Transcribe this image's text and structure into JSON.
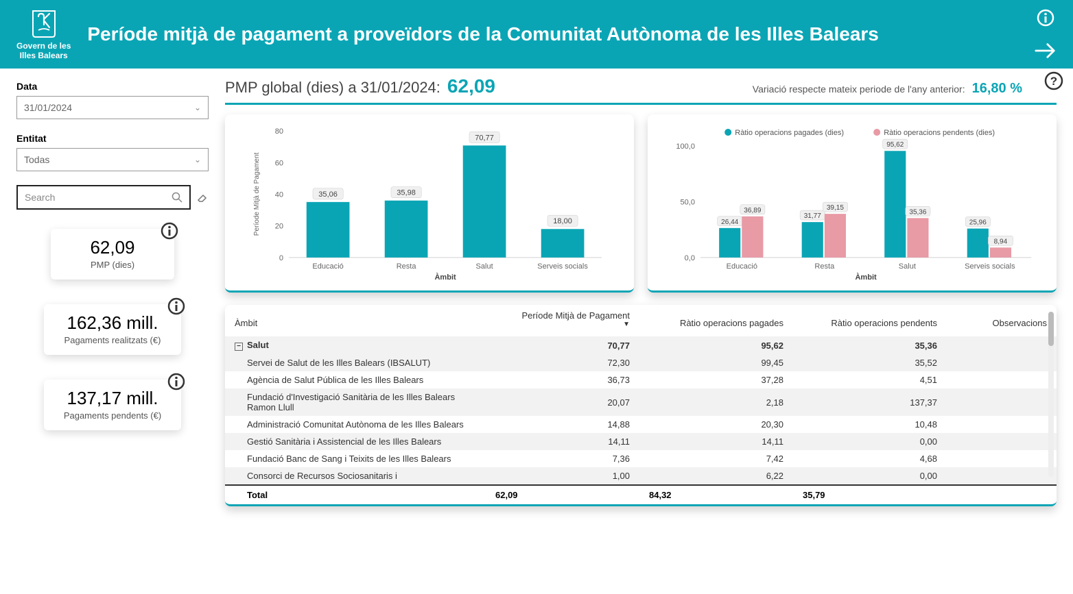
{
  "header": {
    "org_line1": "Govern de les",
    "org_line2": "Illes Balears",
    "title": "Període mitjà de pagament a proveïdors de la Comunitat Autònoma de les Illes Balears"
  },
  "sidebar": {
    "data_label": "Data",
    "data_value": "31/01/2024",
    "entitat_label": "Entitat",
    "entitat_value": "Todas",
    "search_placeholder": "Search",
    "kpis": [
      {
        "value": "62,09",
        "label": "PMP (dies)"
      },
      {
        "value": "162,36 mill.",
        "label": "Pagaments realitzats (€)"
      },
      {
        "value": "137,17 mill.",
        "label": "Pagaments pendents (€)"
      }
    ]
  },
  "strip": {
    "label": "PMP global (dies) a 31/01/2024:",
    "value": "62,09",
    "var_label": "Variació respecte mateix periode de l'any anterior:",
    "var_value": "16,80 %"
  },
  "chart1": {
    "type": "bar",
    "ylabel": "Període Mitjà de Pagament",
    "xlabel": "Àmbit",
    "ylim": [
      0,
      80
    ],
    "ytick_step": 20,
    "categories": [
      "Educació",
      "Resta",
      "Salut",
      "Serveis socials"
    ],
    "values": [
      35.06,
      35.98,
      70.77,
      18.0
    ],
    "value_labels": [
      "35,06",
      "35,98",
      "70,77",
      "18,00"
    ],
    "bar_color": "#0aa5b5",
    "grid_color": "#d0d0d0",
    "text_color": "#666",
    "label_bg": "#f0f0f0",
    "label_fontsize": 11
  },
  "chart2": {
    "type": "grouped-bar",
    "xlabel": "Àmbit",
    "ylim": [
      0,
      100
    ],
    "ytick_step": 50,
    "ytick_labels": [
      "0,0",
      "50,0",
      "100,0"
    ],
    "categories": [
      "Educació",
      "Resta",
      "Salut",
      "Serveis socials"
    ],
    "series": [
      {
        "name": "Ràtio operacions pagades (dies)",
        "color": "#0aa5b5",
        "values": [
          26.44,
          31.77,
          95.62,
          25.96
        ],
        "labels": [
          "26,44",
          "31,77",
          "95,62",
          "25,96"
        ]
      },
      {
        "name": "Ràtio operacions pendents (dies)",
        "color": "#e89aa5",
        "values": [
          36.89,
          39.15,
          35.36,
          8.94
        ],
        "labels": [
          "36,89",
          "39,15",
          "35,36",
          "8,94"
        ]
      }
    ],
    "grid_color": "#d0d0d0",
    "text_color": "#666",
    "label_bg": "#f0f0f0"
  },
  "table": {
    "columns": [
      "Àmbit",
      "Període Mitjà de Pagament",
      "Ràtio operacions pagades",
      "Ràtio operacions pendents",
      "Observacions"
    ],
    "group": {
      "name": "Salut",
      "pmp": "70,77",
      "pagades": "95,62",
      "pendents": "35,36"
    },
    "rows": [
      {
        "name": "Servei de Salut de les Illes Balears (IBSALUT)",
        "pmp": "72,30",
        "pagades": "99,45",
        "pendents": "35,52"
      },
      {
        "name": "Agència de Salut Pública de les Illes Balears",
        "pmp": "36,73",
        "pagades": "37,28",
        "pendents": "4,51"
      },
      {
        "name": "Fundació d'Investigació Sanitària de les Illes Balears Ramon Llull",
        "pmp": "20,07",
        "pagades": "2,18",
        "pendents": "137,37"
      },
      {
        "name": "Administració Comunitat Autònoma de les Illes Balears",
        "pmp": "14,88",
        "pagades": "20,30",
        "pendents": "10,48"
      },
      {
        "name": "Gestió Sanitària i Assistencial de les Illes Balears",
        "pmp": "14,11",
        "pagades": "14,11",
        "pendents": "0,00"
      },
      {
        "name": "Fundació Banc de Sang i Teixits de les Illes Balears",
        "pmp": "7,36",
        "pagades": "7,42",
        "pendents": "4,68"
      },
      {
        "name": "Consorci de Recursos Sociosanitaris i",
        "pmp": "1,00",
        "pagades": "6,22",
        "pendents": "0,00"
      }
    ],
    "total": {
      "label": "Total",
      "pmp": "62,09",
      "pagades": "84,32",
      "pendents": "35,79"
    }
  },
  "colors": {
    "primary": "#0aa5b5",
    "secondary": "#e89aa5"
  }
}
